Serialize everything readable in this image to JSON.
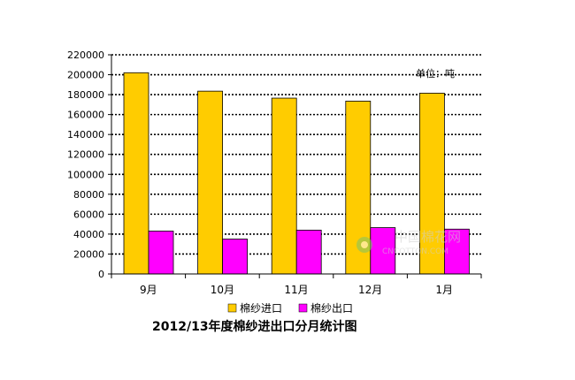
{
  "chart_data": {
    "type": "bar",
    "title": "2012/13年度棉纱进出口分月统计图",
    "unit_label": "单位：吨",
    "categories": [
      "9月",
      "10月",
      "11月",
      "12月",
      "1月"
    ],
    "series": [
      {
        "name": "棉纱进口",
        "color": "#FFCC00",
        "values": [
          202000,
          183500,
          176500,
          173500,
          181500
        ]
      },
      {
        "name": "棉纱出口",
        "color": "#FF00FF",
        "values": [
          43000,
          35000,
          44000,
          46500,
          45000
        ]
      }
    ],
    "ylim": [
      0,
      220000
    ],
    "yticks": [
      0,
      20000,
      40000,
      60000,
      80000,
      100000,
      120000,
      140000,
      160000,
      180000,
      200000,
      220000
    ],
    "grid": "dotted-horizontal",
    "legend_position": "bottom"
  },
  "watermark": {
    "text": "中国棉花网",
    "subtext": "CNCOTTON.COM"
  }
}
